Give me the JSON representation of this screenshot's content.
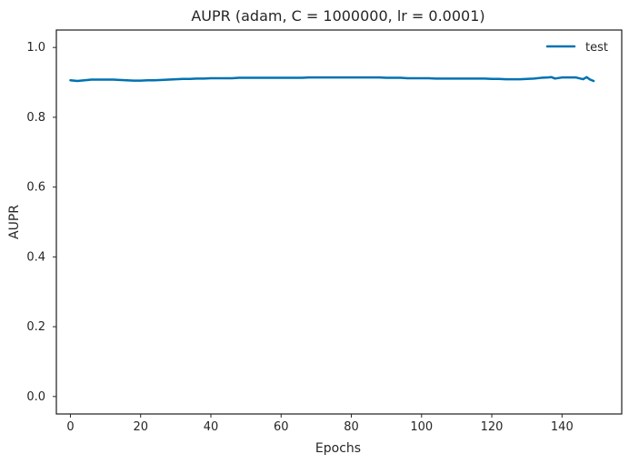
{
  "chart_data": {
    "type": "line",
    "title": "AUPR (adam, C = 1000000, lr = 0.0001)",
    "xlabel": "Epochs",
    "ylabel": "AUPR",
    "xlim": [
      -4,
      157
    ],
    "ylim": [
      -0.05,
      1.05
    ],
    "xticks": [
      0,
      20,
      40,
      60,
      80,
      100,
      120,
      140
    ],
    "yticks": [
      0.0,
      0.2,
      0.4,
      0.6,
      0.8,
      1.0
    ],
    "xtick_labels": [
      "0",
      "20",
      "40",
      "60",
      "80",
      "100",
      "120",
      "140"
    ],
    "ytick_labels": [
      "0.0",
      "0.2",
      "0.4",
      "0.6",
      "0.8",
      "1.0"
    ],
    "grid": false,
    "legend_position": "top-right",
    "series": [
      {
        "name": "test",
        "color": "#0072B2",
        "x": [
          0,
          2,
          4,
          6,
          8,
          10,
          12,
          14,
          16,
          18,
          20,
          22,
          24,
          26,
          28,
          30,
          32,
          34,
          36,
          38,
          40,
          42,
          44,
          46,
          48,
          50,
          52,
          54,
          56,
          58,
          60,
          62,
          64,
          66,
          68,
          70,
          72,
          74,
          76,
          78,
          80,
          82,
          84,
          86,
          88,
          90,
          92,
          94,
          96,
          98,
          100,
          102,
          104,
          106,
          108,
          110,
          112,
          114,
          116,
          118,
          120,
          122,
          124,
          126,
          128,
          130,
          132,
          134,
          136,
          137,
          138,
          140,
          142,
          144,
          146,
          147,
          148,
          149
        ],
        "values": [
          0.906,
          0.904,
          0.906,
          0.908,
          0.908,
          0.908,
          0.908,
          0.907,
          0.906,
          0.905,
          0.905,
          0.906,
          0.906,
          0.907,
          0.908,
          0.909,
          0.91,
          0.91,
          0.911,
          0.911,
          0.912,
          0.912,
          0.912,
          0.912,
          0.913,
          0.913,
          0.913,
          0.913,
          0.913,
          0.913,
          0.913,
          0.913,
          0.913,
          0.913,
          0.914,
          0.914,
          0.914,
          0.914,
          0.914,
          0.914,
          0.914,
          0.914,
          0.914,
          0.914,
          0.914,
          0.913,
          0.913,
          0.913,
          0.912,
          0.912,
          0.912,
          0.912,
          0.911,
          0.911,
          0.911,
          0.911,
          0.911,
          0.911,
          0.911,
          0.911,
          0.91,
          0.91,
          0.909,
          0.909,
          0.909,
          0.91,
          0.911,
          0.913,
          0.914,
          0.915,
          0.911,
          0.914,
          0.914,
          0.914,
          0.909,
          0.915,
          0.908,
          0.904
        ]
      }
    ]
  }
}
